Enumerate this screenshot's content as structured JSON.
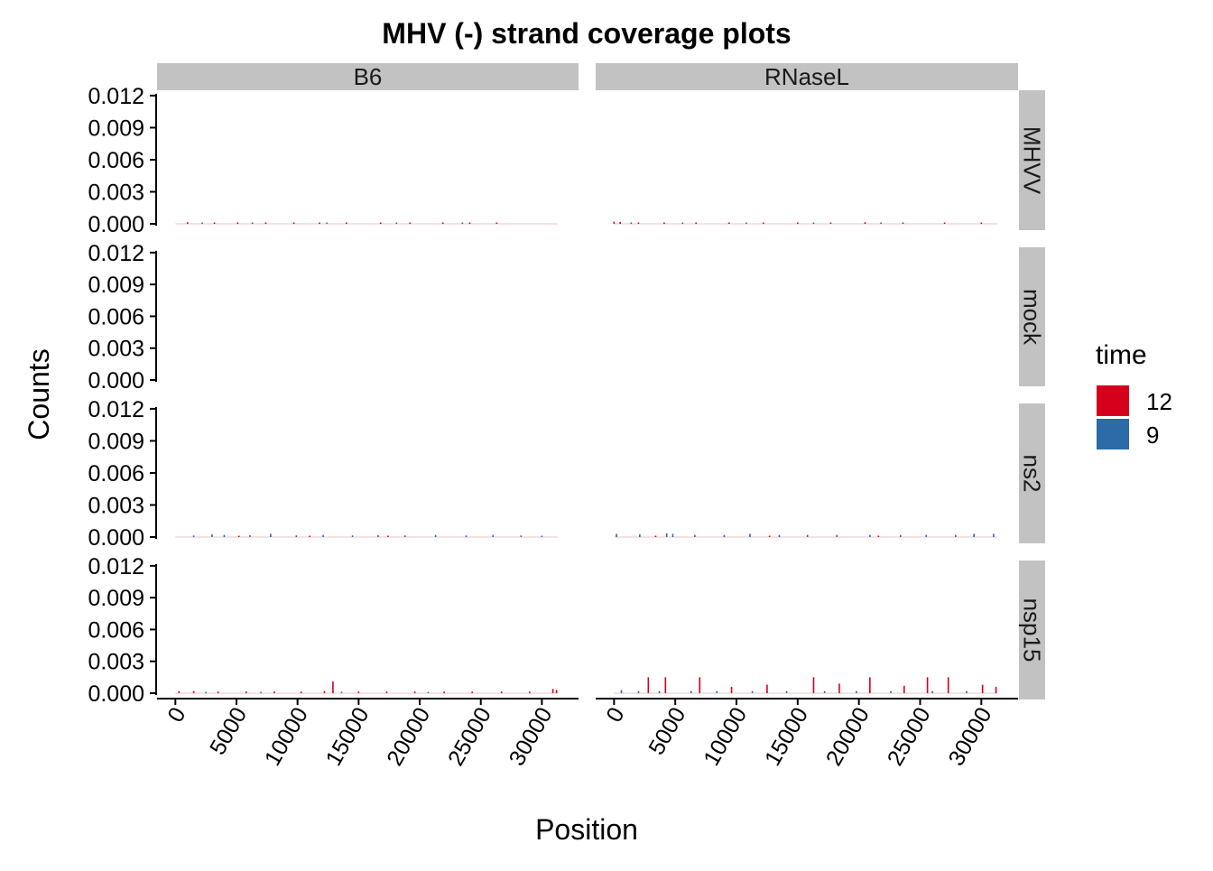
{
  "chart_data": {
    "type": "bar",
    "title": "MHV (-) strand coverage plots",
    "xlabel": "Position",
    "ylabel": "Counts",
    "xlim": [
      -1500,
      33000
    ],
    "ylim": [
      0,
      0.0125
    ],
    "x_ticks": [
      0,
      5000,
      10000,
      15000,
      20000,
      25000,
      30000
    ],
    "x_tick_labels": [
      "0",
      "5000",
      "10000",
      "15000",
      "20000",
      "25000",
      "30000"
    ],
    "y_ticks": [
      0,
      0.003,
      0.006,
      0.009,
      0.012
    ],
    "y_tick_labels": [
      "0.000",
      "0.003",
      "0.006",
      "0.009",
      "0.012"
    ],
    "facet_columns": [
      "B6",
      "RNaseL"
    ],
    "facet_rows": [
      "MHVV",
      "mock",
      "ns2",
      "nsp15"
    ],
    "legend": {
      "title": "time",
      "position": "right",
      "entries": [
        {
          "label": "12",
          "color": "#d7001c"
        },
        {
          "label": "9",
          "color": "#2c6aa8"
        }
      ]
    },
    "grid": false,
    "panels": [
      {
        "col": "B6",
        "row": "MHVV",
        "series": [
          {
            "name": "12",
            "x": [
              1000,
              3200,
              5100,
              7400,
              9700,
              11800,
              14000,
              16800,
              19200,
              21900,
              24100,
              26300
            ],
            "values": [
              0.00015,
              0.0001,
              0.0001,
              0.0001,
              8e-05,
              0.0001,
              0.0001,
              0.00012,
              0.0001,
              8e-05,
              8e-05,
              7e-05
            ]
          },
          {
            "name": "9",
            "x": [
              2200,
              6300,
              12400,
              18100,
              23500
            ],
            "values": [
              8e-05,
              7e-05,
              8e-05,
              7e-05,
              6e-05
            ]
          }
        ]
      },
      {
        "col": "RNaseL",
        "row": "MHVV",
        "series": [
          {
            "name": "12",
            "x": [
              0,
              500,
              2000,
              4100,
              6700,
              9400,
              12200,
              15000,
              17700,
              20500,
              23600,
              27000,
              30000
            ],
            "values": [
              0.0002,
              0.00018,
              0.00012,
              0.00012,
              0.0001,
              0.0001,
              0.0001,
              0.00012,
              0.0001,
              0.00015,
              0.0001,
              8e-05,
              8e-05
            ]
          },
          {
            "name": "9",
            "x": [
              1400,
              5600,
              10800,
              16300,
              21800
            ],
            "values": [
              8e-05,
              7e-05,
              7e-05,
              6e-05,
              6e-05
            ]
          }
        ]
      },
      {
        "col": "B6",
        "row": "mock",
        "series": []
      },
      {
        "col": "RNaseL",
        "row": "mock",
        "series": []
      },
      {
        "col": "B6",
        "row": "ns2",
        "series": [
          {
            "name": "9",
            "x": [
              1500,
              3000,
              4000,
              6100,
              7800,
              9900,
              12100,
              14500,
              16600,
              18800,
              21300,
              23800,
              26000,
              28300,
              30000
            ],
            "values": [
              0.00015,
              0.00025,
              0.0002,
              0.00018,
              0.0003,
              0.00015,
              0.0002,
              0.00015,
              0.00018,
              0.00015,
              0.0002,
              0.00015,
              0.0002,
              0.00015,
              0.0001
            ]
          },
          {
            "name": "12",
            "x": [
              5200,
              11000,
              17400
            ],
            "values": [
              0.0001,
              8e-05,
              0.0001
            ]
          }
        ]
      },
      {
        "col": "RNaseL",
        "row": "ns2",
        "series": [
          {
            "name": "9",
            "x": [
              200,
              2100,
              4300,
              4800,
              6600,
              9000,
              11100,
              13500,
              15800,
              18200,
              20900,
              23400,
              25500,
              27900,
              29400,
              31000
            ],
            "values": [
              0.0003,
              0.00025,
              0.00035,
              0.0003,
              0.0002,
              0.0002,
              0.0003,
              0.0002,
              0.0002,
              0.0002,
              0.0002,
              0.0002,
              0.0002,
              0.0002,
              0.0003,
              0.0003
            ]
          },
          {
            "name": "12",
            "x": [
              3400,
              12700,
              21600
            ],
            "values": [
              0.0001,
              0.0001,
              0.0001
            ]
          }
        ]
      },
      {
        "col": "B6",
        "row": "nsp15",
        "series": [
          {
            "name": "12",
            "x": [
              300,
              1500,
              3500,
              5800,
              8100,
              10300,
              12200,
              12900,
              15000,
              17300,
              19600,
              22000,
              24300,
              26700,
              29000,
              30900,
              31200
            ],
            "values": [
              0.0002,
              0.0002,
              0.00015,
              0.00015,
              0.00015,
              0.00015,
              0.0002,
              0.0011,
              0.00015,
              0.00015,
              0.00015,
              0.00015,
              0.00015,
              0.00015,
              0.00015,
              0.0004,
              0.0003
            ]
          },
          {
            "name": "9",
            "x": [
              2500,
              7000,
              13600,
              20700
            ],
            "values": [
              0.0001,
              0.0001,
              0.0001,
              0.0001
            ]
          }
        ]
      },
      {
        "col": "RNaseL",
        "row": "nsp15",
        "series": [
          {
            "name": "12",
            "x": [
              2800,
              4200,
              7000,
              9600,
              12500,
              16300,
              18400,
              20900,
              23700,
              25600,
              27300,
              30100,
              31200
            ],
            "values": [
              0.0015,
              0.0015,
              0.0015,
              0.0006,
              0.0008,
              0.0015,
              0.0009,
              0.0015,
              0.0007,
              0.0015,
              0.0015,
              0.0008,
              0.0006
            ]
          },
          {
            "name": "9",
            "x": [
              600,
              2000,
              3700,
              6300,
              8400,
              11300,
              14100,
              17200,
              19800,
              22600,
              26000,
              28800
            ],
            "values": [
              0.0003,
              0.0002,
              0.0002,
              0.0002,
              0.0002,
              0.0002,
              0.0002,
              0.0002,
              0.0002,
              0.0002,
              0.0002,
              0.0002
            ]
          }
        ]
      }
    ]
  }
}
